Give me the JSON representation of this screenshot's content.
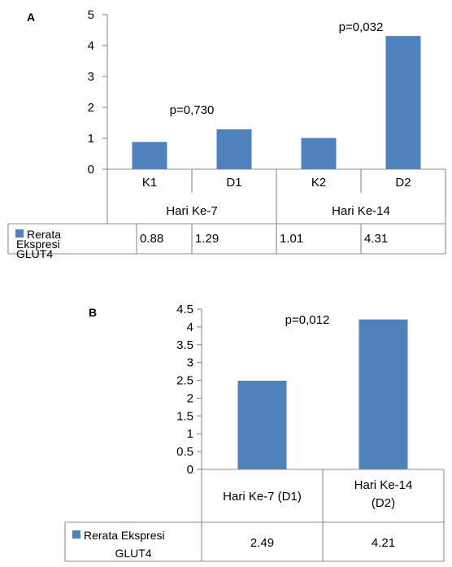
{
  "chart_data": [
    {
      "panel_label": "A",
      "type": "bar",
      "categories": [
        "K1",
        "D1",
        "K2",
        "D2"
      ],
      "groups": [
        {
          "label": "Hari Ke-7",
          "categories": [
            "K1",
            "D1"
          ]
        },
        {
          "label": "Hari Ke-14",
          "categories": [
            "K2",
            "D2"
          ]
        }
      ],
      "series": [
        {
          "name": "Rerata Ekspresi GLUT4",
          "values": [
            0.88,
            1.29,
            1.01,
            4.31
          ]
        }
      ],
      "table_values": [
        "0.88",
        "1.29",
        "1.01",
        "4.31"
      ],
      "legend_lines": [
        "Rerata",
        "Ekspresi",
        "GLUT4"
      ],
      "annotations": [
        "p=0,730",
        "p=0,032"
      ],
      "ylim": [
        0,
        5
      ],
      "yticks": [
        "0",
        "1",
        "2",
        "3",
        "4",
        "5"
      ],
      "grid": false,
      "legend_position": "data table",
      "color": "#4F81BD"
    },
    {
      "panel_label": "B",
      "type": "bar",
      "categories": [
        "Hari Ke-7 (D1)",
        "Hari Ke-14 (D2)"
      ],
      "category_lines": [
        [
          "Hari Ke-7 (D1)"
        ],
        [
          "Hari Ke-14",
          "(D2)"
        ]
      ],
      "series": [
        {
          "name": "Rerata Ekspresi GLUT4",
          "values": [
            2.49,
            4.21
          ]
        }
      ],
      "table_values": [
        "2.49",
        "4.21"
      ],
      "legend_lines": [
        "Rerata Ekspresi",
        "GLUT4"
      ],
      "annotations": [
        "p=0,012"
      ],
      "ylim": [
        0,
        4.5
      ],
      "yticks": [
        "0",
        "0.5",
        "1",
        "1.5",
        "2",
        "2.5",
        "3",
        "3.5",
        "4",
        "4.5"
      ],
      "grid": false,
      "legend_position": "data table",
      "color": "#4F81BD"
    }
  ]
}
